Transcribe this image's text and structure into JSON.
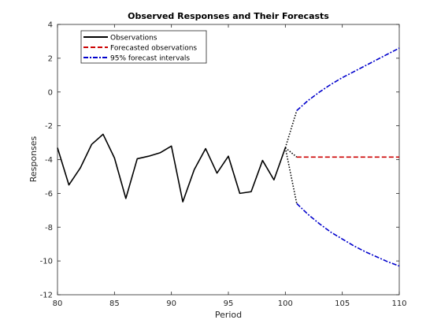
{
  "chart_data": {
    "type": "line",
    "title": "Observed Responses and Their Forecasts",
    "xlabel": "Period",
    "ylabel": "Responses",
    "xlim": [
      80,
      110
    ],
    "ylim": [
      -12,
      4
    ],
    "x_ticks": [
      80,
      85,
      90,
      95,
      100,
      105,
      110
    ],
    "y_ticks": [
      4,
      2,
      0,
      -2,
      -4,
      -6,
      -8,
      -10,
      -12
    ],
    "grid": false,
    "legend_position": "top-left",
    "series": [
      {
        "name": "Observations",
        "style": "solid",
        "color": "#000000",
        "x": [
          80,
          81,
          82,
          83,
          84,
          85,
          86,
          87,
          88,
          89,
          90,
          91,
          92,
          93,
          94,
          95,
          96,
          97,
          98,
          99,
          100
        ],
        "values": [
          -3.3,
          -5.5,
          -4.5,
          -3.1,
          -2.5,
          -3.9,
          -6.3,
          -3.95,
          -3.8,
          -3.6,
          -3.2,
          -6.5,
          -4.6,
          -3.35,
          -4.8,
          -3.8,
          -6.0,
          -5.9,
          -4.05,
          -5.2,
          -3.3
        ]
      },
      {
        "name": "Forecasted observations",
        "style": "dashed",
        "color": "#cc0000",
        "x": [
          101,
          102,
          103,
          104,
          105,
          106,
          107,
          108,
          109,
          110
        ],
        "values": [
          -3.85,
          -3.85,
          -3.85,
          -3.85,
          -3.85,
          -3.85,
          -3.85,
          -3.85,
          -3.85,
          -3.85
        ]
      },
      {
        "name": "95% forecast intervals",
        "style": "dash-dot",
        "color": "#0000cc",
        "x": [
          101,
          102,
          103,
          104,
          105,
          106,
          107,
          108,
          109,
          110
        ],
        "upper": [
          -1.1,
          -0.5,
          0.0,
          0.45,
          0.85,
          1.2,
          1.55,
          1.9,
          2.25,
          2.6
        ],
        "lower": [
          -6.6,
          -7.25,
          -7.8,
          -8.3,
          -8.7,
          -9.1,
          -9.45,
          -9.75,
          -10.05,
          -10.3
        ]
      }
    ],
    "connectors": {
      "style": "dotted",
      "color": "#000000",
      "from": {
        "x": 100,
        "y": -3.3
      },
      "to_points": [
        {
          "x": 101,
          "y": -1.1
        },
        {
          "x": 101,
          "y": -6.6
        },
        {
          "x": 101,
          "y": -3.85
        }
      ]
    }
  }
}
